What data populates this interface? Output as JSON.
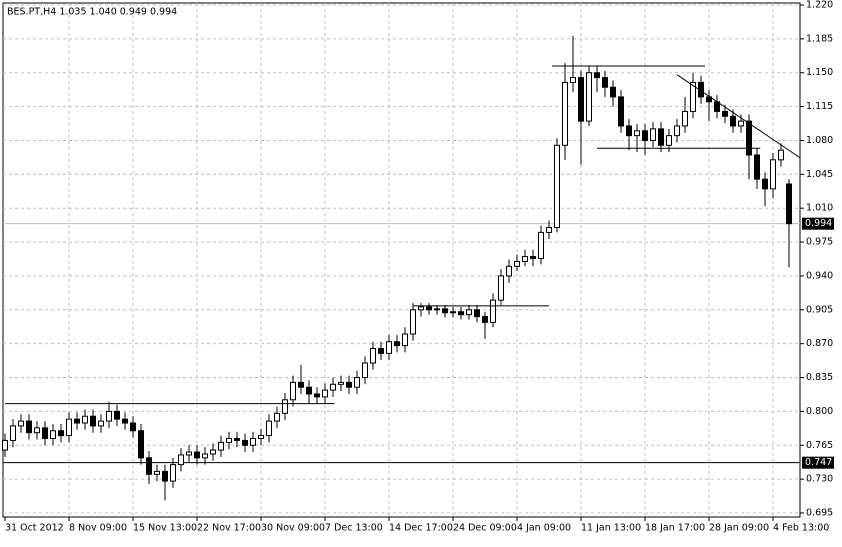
{
  "chart_data": {
    "type": "candlestick",
    "title": "BES.PT,H4  1.035 1.040 0.949 0.994",
    "categories": [
      "31 Oct 2012",
      null,
      null,
      null,
      null,
      null,
      null,
      null,
      "8 Nov 09:00",
      null,
      null,
      null,
      null,
      null,
      null,
      null,
      "15 Nov 13:00",
      null,
      null,
      null,
      null,
      null,
      null,
      null,
      "22 Nov 17:00",
      null,
      null,
      null,
      null,
      null,
      null,
      null,
      "30 Nov 09:00",
      null,
      null,
      null,
      null,
      null,
      null,
      null,
      "7 Dec 13:00",
      null,
      null,
      null,
      null,
      null,
      null,
      null,
      "14 Dec 17:00",
      null,
      null,
      null,
      null,
      null,
      null,
      null,
      "24 Dec 09:00",
      null,
      null,
      null,
      null,
      null,
      null,
      null,
      "4 Jan 09:00",
      null,
      null,
      null,
      null,
      null,
      null,
      null,
      "11 Jan 13:00",
      null,
      null,
      null,
      null,
      null,
      null,
      null,
      "18 Jan 17:00",
      null,
      null,
      null,
      null,
      null,
      null,
      null,
      "28 Jan 09:00",
      null,
      null,
      null,
      null,
      null,
      null,
      null,
      "4 Feb 13:00",
      null,
      null
    ],
    "open": [
      0.76,
      0.77,
      0.785,
      0.79,
      0.778,
      0.783,
      0.772,
      0.78,
      0.775,
      0.792,
      0.788,
      0.795,
      0.785,
      0.79,
      0.8,
      0.792,
      0.788,
      0.78,
      0.752,
      0.735,
      0.738,
      0.728,
      0.745,
      0.755,
      0.758,
      0.752,
      0.756,
      0.76,
      0.768,
      0.772,
      0.77,
      0.765,
      0.772,
      0.775,
      0.79,
      0.798,
      0.812,
      0.83,
      0.825,
      0.818,
      0.815,
      0.822,
      0.828,
      0.83,
      0.825,
      0.835,
      0.85,
      0.865,
      0.86,
      0.872,
      0.868,
      0.88,
      0.905,
      0.908,
      0.905,
      0.906,
      0.902,
      0.903,
      0.9,
      0.905,
      0.898,
      0.892,
      0.915,
      0.94,
      0.95,
      0.955,
      0.96,
      0.958,
      0.985,
      0.99,
      1.075,
      1.14,
      1.145,
      1.1,
      1.15,
      1.145,
      1.135,
      1.125,
      1.095,
      1.085,
      1.09,
      1.08,
      1.092,
      1.075,
      1.085,
      1.095,
      1.11,
      1.14,
      1.125,
      1.12,
      1.11,
      1.105,
      1.095,
      1.1,
      1.065,
      1.04,
      1.03,
      1.06,
      1.035
    ],
    "high": [
      0.777,
      0.792,
      0.797,
      0.797,
      0.79,
      0.79,
      0.787,
      0.787,
      0.799,
      0.799,
      0.802,
      0.802,
      0.797,
      0.81,
      0.807,
      0.799,
      0.795,
      0.787,
      0.759,
      0.745,
      0.745,
      0.752,
      0.762,
      0.765,
      0.765,
      0.763,
      0.767,
      0.775,
      0.779,
      0.779,
      0.777,
      0.779,
      0.782,
      0.797,
      0.805,
      0.819,
      0.837,
      0.848,
      0.832,
      0.825,
      0.829,
      0.835,
      0.837,
      0.837,
      0.842,
      0.857,
      0.872,
      0.872,
      0.879,
      0.879,
      0.887,
      0.912,
      0.912,
      0.912,
      0.91,
      0.91,
      0.908,
      0.908,
      0.91,
      0.91,
      0.903,
      0.922,
      0.947,
      0.957,
      0.962,
      0.967,
      0.967,
      0.992,
      0.997,
      1.082,
      1.16,
      1.188,
      1.152,
      1.157,
      1.157,
      1.152,
      1.142,
      1.132,
      1.102,
      1.097,
      1.097,
      1.099,
      1.099,
      1.092,
      1.102,
      1.125,
      1.15,
      1.147,
      1.132,
      1.127,
      1.117,
      1.112,
      1.107,
      1.107,
      1.072,
      1.047,
      1.067,
      1.077,
      1.04
    ],
    "low": [
      0.753,
      0.763,
      0.778,
      0.771,
      0.771,
      0.765,
      0.765,
      0.768,
      0.768,
      0.781,
      0.781,
      0.778,
      0.778,
      0.783,
      0.785,
      0.781,
      0.773,
      0.745,
      0.725,
      0.728,
      0.708,
      0.721,
      0.738,
      0.748,
      0.745,
      0.745,
      0.749,
      0.753,
      0.761,
      0.763,
      0.758,
      0.758,
      0.765,
      0.768,
      0.783,
      0.791,
      0.805,
      0.818,
      0.808,
      0.808,
      0.808,
      0.815,
      0.821,
      0.818,
      0.818,
      0.828,
      0.843,
      0.853,
      0.853,
      0.861,
      0.861,
      0.873,
      0.898,
      0.9,
      0.9,
      0.897,
      0.897,
      0.895,
      0.895,
      0.892,
      0.875,
      0.887,
      0.91,
      0.933,
      0.945,
      0.95,
      0.95,
      0.952,
      0.978,
      0.985,
      1.06,
      1.13,
      1.055,
      1.095,
      1.13,
      1.125,
      1.115,
      1.088,
      1.07,
      1.068,
      1.065,
      1.073,
      1.068,
      1.068,
      1.078,
      1.088,
      1.103,
      1.118,
      1.1,
      1.103,
      1.098,
      1.088,
      1.088,
      1.04,
      1.03,
      1.012,
      1.02,
      1.053,
      0.949
    ],
    "close": [
      0.77,
      0.785,
      0.79,
      0.778,
      0.783,
      0.772,
      0.78,
      0.775,
      0.792,
      0.788,
      0.795,
      0.785,
      0.79,
      0.8,
      0.792,
      0.788,
      0.78,
      0.752,
      0.735,
      0.738,
      0.728,
      0.745,
      0.755,
      0.758,
      0.752,
      0.756,
      0.76,
      0.768,
      0.772,
      0.77,
      0.765,
      0.772,
      0.775,
      0.79,
      0.798,
      0.812,
      0.83,
      0.825,
      0.818,
      0.815,
      0.822,
      0.828,
      0.83,
      0.825,
      0.835,
      0.85,
      0.865,
      0.86,
      0.872,
      0.868,
      0.88,
      0.905,
      0.908,
      0.905,
      0.906,
      0.902,
      0.903,
      0.9,
      0.905,
      0.898,
      0.892,
      0.915,
      0.94,
      0.95,
      0.955,
      0.96,
      0.958,
      0.985,
      0.99,
      1.075,
      1.14,
      1.145,
      1.1,
      1.15,
      1.145,
      1.135,
      1.125,
      1.095,
      1.085,
      1.09,
      1.08,
      1.092,
      1.075,
      1.085,
      1.095,
      1.11,
      1.14,
      1.125,
      1.12,
      1.11,
      1.105,
      1.095,
      1.1,
      1.065,
      1.04,
      1.03,
      1.06,
      1.07,
      0.994
    ],
    "up_color": "#ffffff",
    "down_color": "#000000",
    "ylim": [
      0.695,
      1.22
    ],
    "yticks": [
      {
        "value": 1.22,
        "label": "1.220"
      },
      1.185,
      {
        "value": 1.15,
        "label": "1.150"
      },
      1.115,
      {
        "value": 1.08,
        "label": "1.080"
      },
      1.045,
      {
        "value": 1.01,
        "label": "1.010"
      },
      0.975,
      {
        "value": 0.94,
        "label": "0.940"
      },
      0.905,
      {
        "value": 0.87,
        "label": "0.870"
      },
      0.835,
      {
        "value": 0.8,
        "label": "0.800"
      },
      0.765,
      {
        "value": 0.73,
        "label": "0.730"
      },
      0.695
    ],
    "grid": true,
    "levels": [
      {
        "value": 0.747,
        "color": "#000000"
      },
      {
        "value": 0.994,
        "color": "#c0c0c0"
      }
    ],
    "trendlines": [
      {
        "x": [
          0,
          41.2
        ],
        "values": [
          0.808,
          0.808
        ]
      },
      {
        "x": [
          51,
          68
        ],
        "values": [
          0.909,
          0.909
        ]
      },
      {
        "x": [
          68.4,
          87.5
        ],
        "values": [
          1.157,
          1.157
        ]
      },
      {
        "x": [
          74,
          94.4
        ],
        "values": [
          1.072,
          1.072
        ]
      },
      {
        "x": [
          84,
          99.4
        ],
        "values": [
          1.148,
          1.062
        ]
      }
    ]
  }
}
